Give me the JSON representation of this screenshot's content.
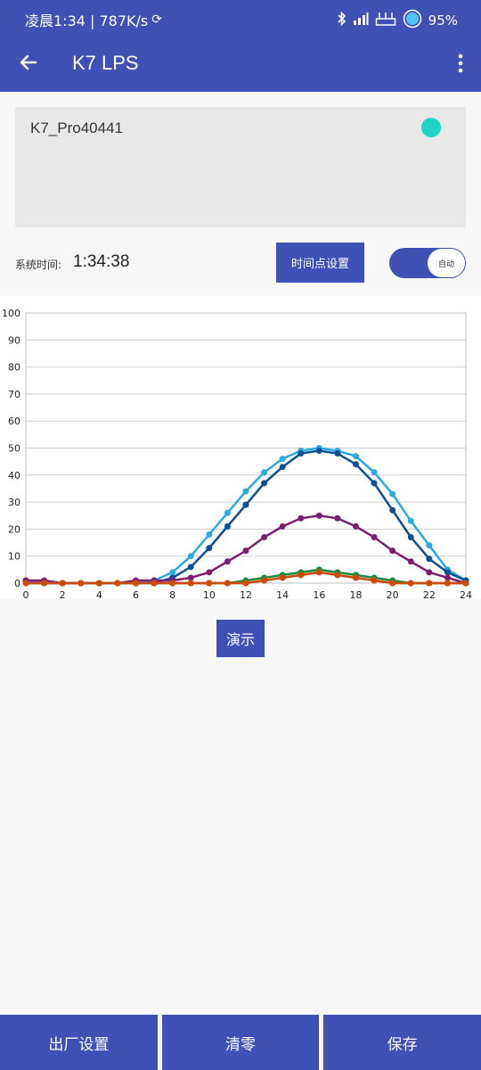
{
  "status_bar": {
    "time": "凌晨1:34 | 787K/s",
    "battery": "95%"
  },
  "app_bar": {
    "title": "K7 LPS",
    "back_icon": "arrow-back-icon",
    "menu_icon": "more-vert-icon"
  },
  "device": {
    "name": "K7_Pro40441",
    "status_color": "#1ed4c6"
  },
  "time_row": {
    "label": "系统时间:",
    "value": "1:34:38",
    "timepoint_button": "时间点设置",
    "toggle_label": "自动",
    "toggle_on": true
  },
  "demo_button": "演示",
  "bottom_buttons": [
    "出厂设置",
    "清零",
    "保存"
  ],
  "colors": {
    "primary": "#3f51b5"
  },
  "chart_data": {
    "type": "line",
    "x": [
      0,
      1,
      2,
      3,
      4,
      5,
      6,
      7,
      8,
      9,
      10,
      11,
      12,
      13,
      14,
      15,
      16,
      17,
      18,
      19,
      20,
      21,
      22,
      23,
      24
    ],
    "xticks": [
      0,
      2,
      4,
      6,
      8,
      10,
      12,
      14,
      16,
      18,
      20,
      22,
      24
    ],
    "yticks": [
      0,
      10,
      20,
      30,
      40,
      50,
      60,
      70,
      80,
      90,
      100
    ],
    "xlim": [
      0,
      24
    ],
    "ylim": [
      0,
      100
    ],
    "grid": true,
    "series": [
      {
        "color": "#29abe2",
        "values": [
          1,
          0,
          0,
          0,
          0,
          0,
          0,
          1,
          4,
          10,
          18,
          26,
          34,
          41,
          46,
          49,
          50,
          49,
          47,
          41,
          33,
          23,
          14,
          5,
          1
        ]
      },
      {
        "color": "#0d4f91",
        "values": [
          0,
          0,
          0,
          0,
          0,
          0,
          0,
          0,
          2,
          6,
          13,
          21,
          29,
          37,
          43,
          48,
          49,
          48,
          44,
          37,
          27,
          17,
          9,
          4,
          1
        ]
      },
      {
        "color": "#7b2070",
        "values": [
          1,
          1,
          0,
          0,
          0,
          0,
          1,
          1,
          1,
          2,
          4,
          8,
          12,
          17,
          21,
          24,
          25,
          24,
          21,
          17,
          12,
          8,
          4,
          2,
          0
        ]
      },
      {
        "color": "#1a8a3a",
        "values": [
          0,
          0,
          0,
          0,
          0,
          0,
          0,
          0,
          0,
          0,
          0,
          0,
          1,
          2,
          3,
          4,
          5,
          4,
          3,
          2,
          1,
          0,
          0,
          0,
          0
        ]
      },
      {
        "color": "#f08080",
        "values": [
          0,
          0,
          0,
          0,
          0,
          0,
          0,
          0,
          0,
          0,
          0,
          0,
          0,
          1,
          2,
          3,
          4,
          3,
          2,
          1,
          0,
          0,
          0,
          0,
          0
        ]
      },
      {
        "color": "#cc4a0a",
        "values": [
          0,
          0,
          0,
          0,
          0,
          0,
          0,
          0,
          0,
          0,
          0,
          0,
          0,
          1,
          2,
          3,
          4,
          3,
          2,
          1,
          0,
          0,
          0,
          0,
          0
        ]
      }
    ]
  }
}
